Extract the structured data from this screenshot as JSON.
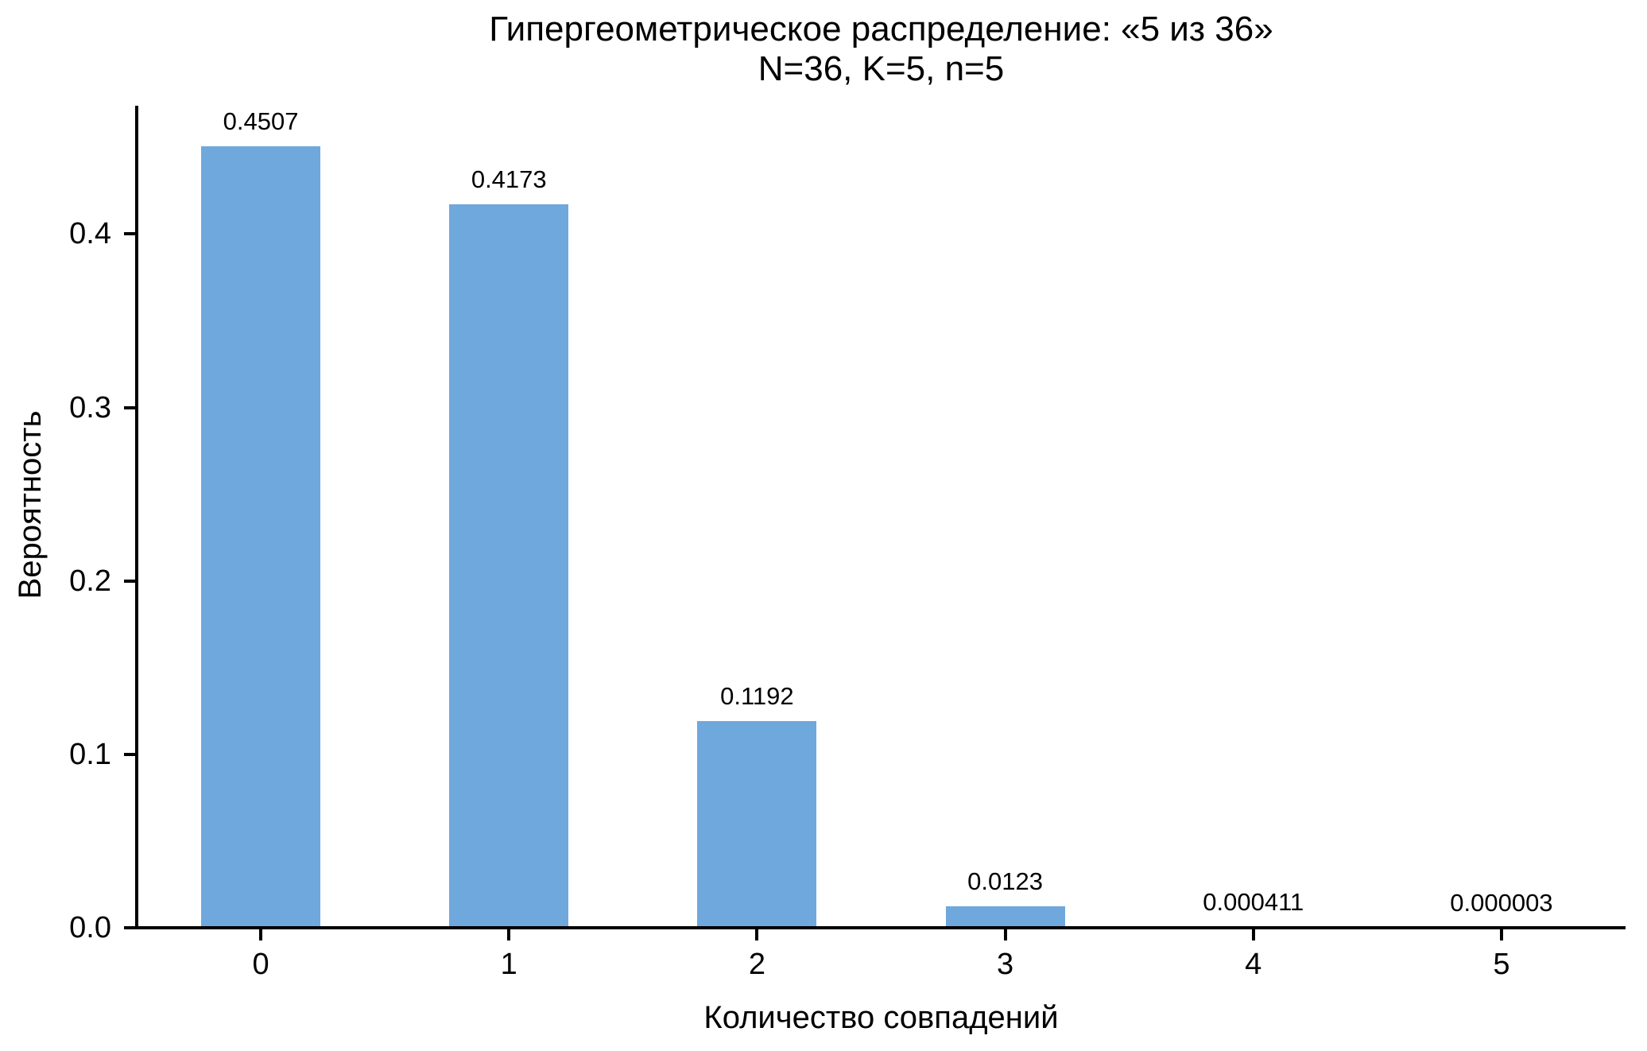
{
  "chart_data": {
    "type": "bar",
    "title": "Гипергеометрическое распределение: «5 из 36»",
    "subtitle": "N=36, K=5, n=5",
    "xlabel": "Количество совпадений",
    "ylabel": "Вероятность",
    "categories": [
      "0",
      "1",
      "2",
      "3",
      "4",
      "5"
    ],
    "values": [
      0.4507,
      0.4173,
      0.1192,
      0.0123,
      0.000411,
      3e-06
    ],
    "value_labels": [
      "0.4507",
      "0.4173",
      "0.1192",
      "0.0123",
      "0.000411",
      "0.000003"
    ],
    "yticks": [
      0.0,
      0.1,
      0.2,
      0.3,
      0.4
    ],
    "ytick_labels": [
      "0.0",
      "0.1",
      "0.2",
      "0.3",
      "0.4"
    ],
    "ylim": [
      0,
      0.474
    ],
    "grid": false,
    "legend": null,
    "bar_color": "#6FA8DC",
    "axis_color": "#000000",
    "text_color": "#000000",
    "background_color": "#FFFFFF"
  }
}
